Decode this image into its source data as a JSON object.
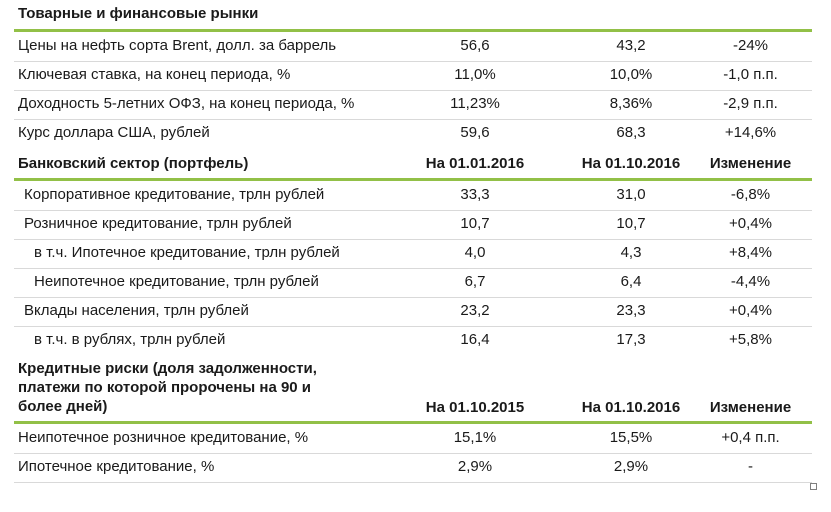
{
  "market": {
    "title": "Товарные и финансовые рынки",
    "rows": [
      {
        "label": "Цены на нефть сорта Brent, долл. за баррель",
        "v1": "56,6",
        "v2": "43,2",
        "change": "-24%"
      },
      {
        "label": "Ключевая ставка, на конец периода, %",
        "v1": "11,0%",
        "v2": "10,0%",
        "change": "-1,0 п.п."
      },
      {
        "label": "Доходность 5-летних ОФЗ, на конец периода, %",
        "v1": "11,23%",
        "v2": "8,36%",
        "change": "-2,9 п.п."
      },
      {
        "label": "Курс доллара США, рублей",
        "v1": "59,6",
        "v2": "68,3",
        "change": "+14,6%"
      }
    ]
  },
  "banking": {
    "title": "Банковский сектор (портфель)",
    "col1": "На 01.01.2016",
    "col2": "На 01.10.2016",
    "col3": "Изменение",
    "rows": [
      {
        "label": "Корпоративное кредитование, трлн рублей",
        "v1": "33,3",
        "v2": "31,0",
        "change": "-6,8%"
      },
      {
        "label": "Розничное кредитование, трлн рублей",
        "v1": "10,7",
        "v2": "10,7",
        "change": "+0,4%"
      },
      {
        "label": "в т.ч. Ипотечное кредитование, трлн рублей",
        "v1": "4,0",
        "v2": "4,3",
        "change": "+8,4%"
      },
      {
        "label": "Неипотечное кредитование, трлн рублей",
        "v1": "6,7",
        "v2": "6,4",
        "change": "-4,4%"
      },
      {
        "label": "Вклады населения, трлн рублей",
        "v1": "23,2",
        "v2": "23,3",
        "change": "+0,4%"
      },
      {
        "label": "в т.ч. в рублях, трлн рублей",
        "v1": "16,4",
        "v2": "17,3",
        "change": "+5,8%"
      }
    ]
  },
  "credit": {
    "title_line1": "Кредитные риски (доля задолженности,",
    "title_line2": "платежи по которой пророчены на 90 и",
    "title_line3": "более дней)",
    "col1": "На 01.10.2015",
    "col2": "На 01.10.2016",
    "col3": "Изменение",
    "rows": [
      {
        "label": "Неипотечное розничное кредитование, %",
        "v1": "15,1%",
        "v2": "15,5%",
        "change": "+0,4 п.п."
      },
      {
        "label": "Ипотечное кредитование, %",
        "v1": "2,9%",
        "v2": "2,9%",
        "change": "-"
      }
    ]
  },
  "colors": {
    "accent": "#92c047",
    "divider": "#d9d9d9"
  }
}
